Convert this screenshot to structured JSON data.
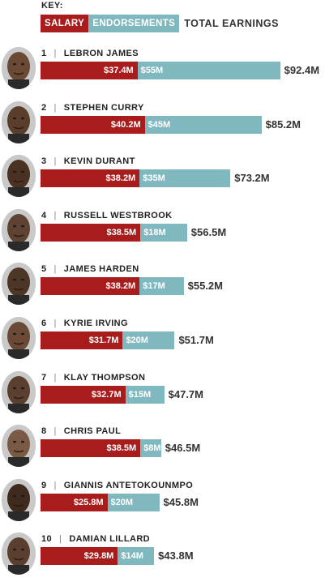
{
  "key": {
    "title": "KEY:",
    "salary_label": "SALARY",
    "endorsements_label": "ENDORSEMENTS",
    "total_label": "TOTAL EARNINGS"
  },
  "colors": {
    "salary": "#a81c1c",
    "endorsements": "#7fb8be"
  },
  "chart_data": {
    "type": "bar",
    "stacked": true,
    "orientation": "horizontal",
    "categories": [
      "LEBRON JAMES",
      "STEPHEN CURRY",
      "KEVIN DURANT",
      "RUSSELL WESTBROOK",
      "JAMES HARDEN",
      "KYRIE IRVING",
      "KLAY THOMPSON",
      "CHRIS PAUL",
      "GIANNIS ANTETOKOUNMPO",
      "DAMIAN LILLARD"
    ],
    "series": [
      {
        "name": "SALARY",
        "values": [
          37.4,
          40.2,
          38.2,
          38.5,
          38.2,
          31.7,
          32.7,
          38.5,
          25.8,
          29.8
        ]
      },
      {
        "name": "ENDORSEMENTS",
        "values": [
          55,
          45,
          35,
          18,
          17,
          20,
          15,
          8,
          20,
          14
        ]
      }
    ],
    "totals": [
      92.4,
      85.2,
      73.2,
      56.5,
      55.2,
      51.7,
      47.7,
      46.5,
      45.8,
      43.8
    ],
    "title": "",
    "xlabel": "",
    "ylabel": ""
  },
  "players": [
    {
      "rank": "1",
      "name": "LEBRON JAMES",
      "salary": "$37.4M",
      "endorsements": "$55M",
      "total": "$92.4M"
    },
    {
      "rank": "2",
      "name": "STEPHEN CURRY",
      "salary": "$40.2M",
      "endorsements": "$45M",
      "total": "$85.2M"
    },
    {
      "rank": "3",
      "name": "KEVIN DURANT",
      "salary": "$38.2M",
      "endorsements": "$35M",
      "total": "$73.2M"
    },
    {
      "rank": "4",
      "name": "RUSSELL WESTBROOK",
      "salary": "$38.5M",
      "endorsements": "$18M",
      "total": "$56.5M"
    },
    {
      "rank": "5",
      "name": "JAMES HARDEN",
      "salary": "$38.2M",
      "endorsements": "$17M",
      "total": "$55.2M"
    },
    {
      "rank": "6",
      "name": "KYRIE IRVING",
      "salary": "$31.7M",
      "endorsements": "$20M",
      "total": "$51.7M"
    },
    {
      "rank": "7",
      "name": "KLAY THOMPSON",
      "salary": "$32.7M",
      "endorsements": "$15M",
      "total": "$47.7M"
    },
    {
      "rank": "8",
      "name": "CHRIS PAUL",
      "salary": "$38.5M",
      "endorsements": "$8M",
      "total": "$46.5M"
    },
    {
      "rank": "9",
      "name": "GIANNIS ANTETOKOUNMPO",
      "salary": "$25.8M",
      "endorsements": "$20M",
      "total": "$45.8M"
    },
    {
      "rank": "10",
      "name": "DAMIAN LILLARD",
      "salary": "$29.8M",
      "endorsements": "$14M",
      "total": "$43.8M"
    }
  ]
}
